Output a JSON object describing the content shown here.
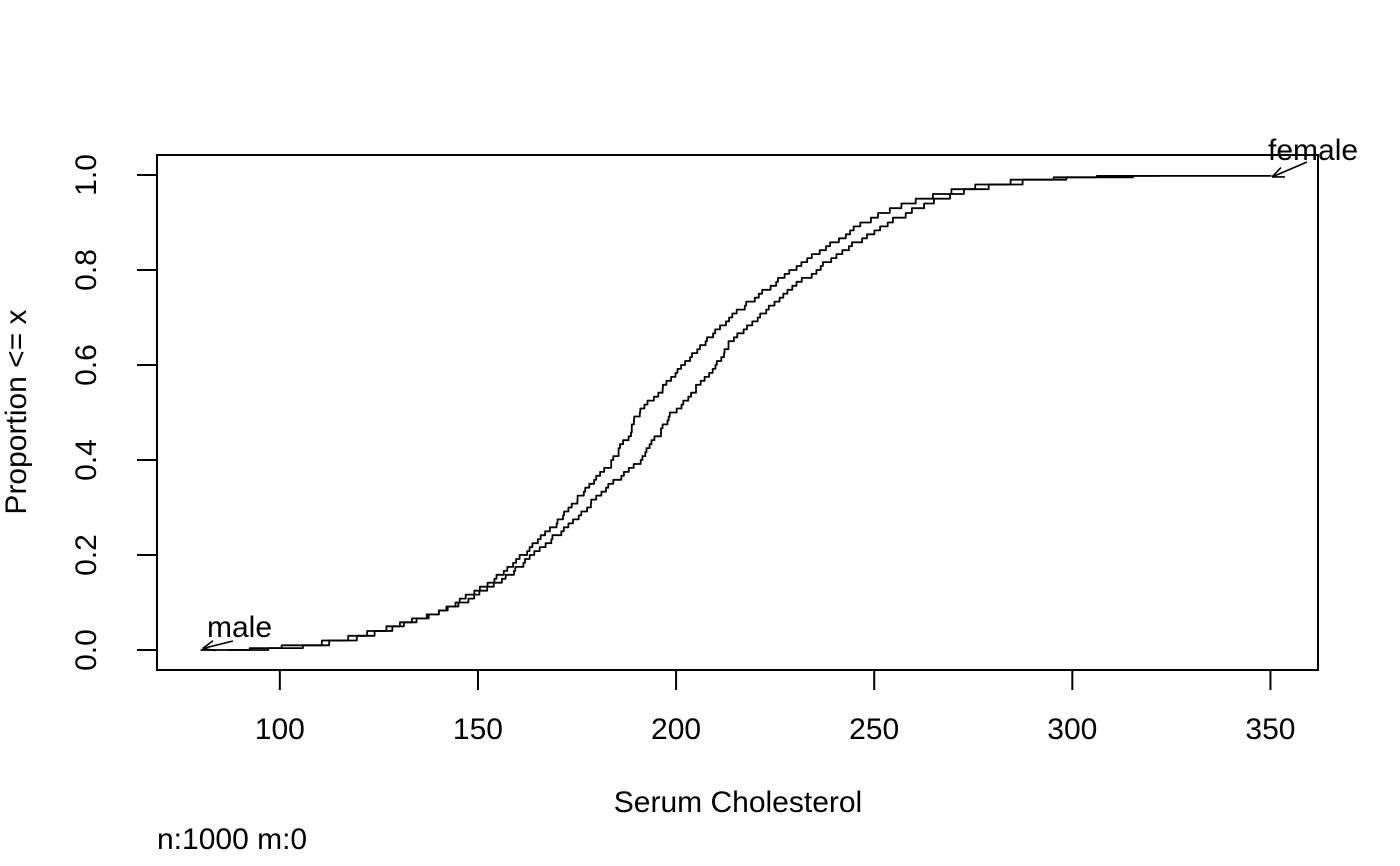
{
  "figure": {
    "background_color": "#ffffff",
    "foreground_color": "#000000"
  },
  "chart_data": {
    "type": "line",
    "variant": "ecdf-step",
    "title": "",
    "xlabel": "Serum Cholesterol",
    "ylabel": "Proportion <= x",
    "footnote": "n:1000 m:0",
    "n_observations": 1000,
    "n_missing": 0,
    "grid": false,
    "legend_position": "curve-labels-with-arrows",
    "xlim": [
      69,
      362
    ],
    "ylim": [
      -0.042,
      1.042
    ],
    "x_tick_values": [
      100,
      150,
      200,
      250,
      300,
      350
    ],
    "x_tick_labels": [
      "100",
      "150",
      "200",
      "250",
      "300",
      "350"
    ],
    "y_tick_values": [
      0.0,
      0.2,
      0.4,
      0.6,
      0.8,
      1.0
    ],
    "y_tick_labels": [
      "0.0",
      "0.2",
      "0.4",
      "0.6",
      "0.8",
      "1.0"
    ],
    "series": [
      {
        "name": "male",
        "label": "male",
        "label_anchor": "curve-start",
        "color": "#000000",
        "quantiles": [
          [
            0,
            80
          ],
          [
            0.004,
            93
          ],
          [
            0.01,
            101
          ],
          [
            0.02,
            110
          ],
          [
            0.03,
            117
          ],
          [
            0.05,
            127
          ],
          [
            0.075,
            137
          ],
          [
            0.1,
            145.5
          ],
          [
            0.15,
            156
          ],
          [
            0.2,
            163.5
          ],
          [
            0.25,
            170.5
          ],
          [
            0.3,
            177
          ],
          [
            0.35,
            183.5
          ],
          [
            0.4,
            190.5
          ],
          [
            0.45,
            195
          ],
          [
            0.5,
            199
          ],
          [
            0.55,
            204.5
          ],
          [
            0.6,
            209.5
          ],
          [
            0.65,
            213.5
          ],
          [
            0.7,
            220
          ],
          [
            0.75,
            227
          ],
          [
            0.8,
            235
          ],
          [
            0.85,
            243
          ],
          [
            0.9,
            253
          ],
          [
            0.93,
            259.5
          ],
          [
            0.95,
            265.5
          ],
          [
            0.97,
            273
          ],
          [
            0.98,
            278.5
          ],
          [
            0.99,
            287
          ],
          [
            0.995,
            295
          ],
          [
            0.998,
            306
          ],
          [
            1,
            322
          ]
        ]
      },
      {
        "name": "female",
        "label": "female",
        "label_anchor": "curve-end",
        "color": "#000000",
        "quantiles": [
          [
            0,
            87
          ],
          [
            0.004,
            97
          ],
          [
            0.01,
            106
          ],
          [
            0.02,
            113
          ],
          [
            0.03,
            120
          ],
          [
            0.05,
            129
          ],
          [
            0.075,
            137.5
          ],
          [
            0.1,
            144
          ],
          [
            0.15,
            154
          ],
          [
            0.2,
            161
          ],
          [
            0.25,
            167.5
          ],
          [
            0.3,
            173
          ],
          [
            0.35,
            178.5
          ],
          [
            0.4,
            184
          ],
          [
            0.45,
            187.5
          ],
          [
            0.5,
            190.5
          ],
          [
            0.55,
            196
          ],
          [
            0.6,
            201
          ],
          [
            0.65,
            207
          ],
          [
            0.7,
            213.5
          ],
          [
            0.75,
            220.5
          ],
          [
            0.8,
            229
          ],
          [
            0.85,
            237.5
          ],
          [
            0.9,
            247
          ],
          [
            0.93,
            253.5
          ],
          [
            0.95,
            260
          ],
          [
            0.97,
            269
          ],
          [
            0.98,
            275
          ],
          [
            0.99,
            285
          ],
          [
            0.995,
            298
          ],
          [
            0.998,
            315
          ],
          [
            1,
            350
          ]
        ]
      }
    ]
  }
}
